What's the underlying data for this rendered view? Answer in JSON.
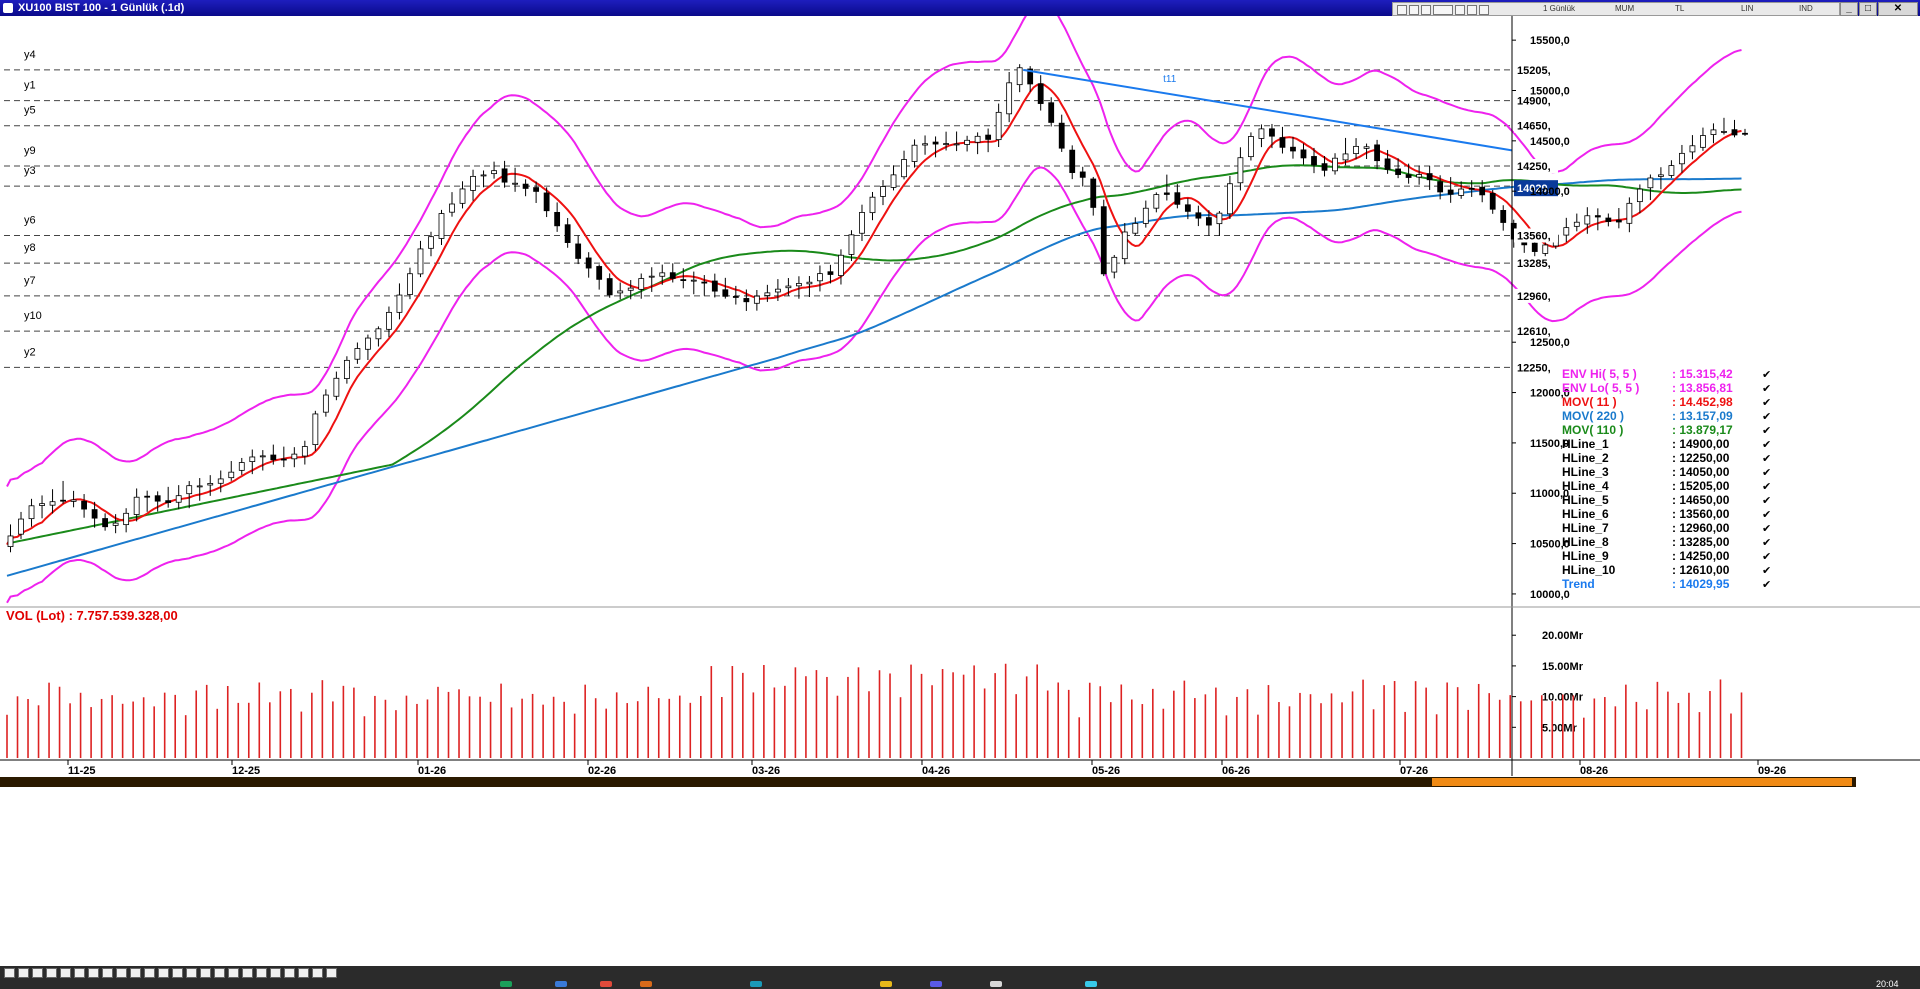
{
  "window": {
    "title": "XU100 BIST 100 - 1 Günlük (.1d)",
    "toolbar": [
      "1 Günlük",
      "MUM",
      "TL",
      "LIN",
      "IND"
    ],
    "time": "20:04"
  },
  "colors": {
    "env": "#ee22ee",
    "mov11": "#ee1111",
    "mov110": "#1a8a1a",
    "mov220": "#1a7acc",
    "trend": "#1a7aee",
    "volume": "#dd2222",
    "hline": "#444444"
  },
  "legend": [
    {
      "label": "ENV Hi( 5, 5 )",
      "value": ": 15.315,42",
      "color": "#ee22ee"
    },
    {
      "label": "ENV Lo( 5, 5 )",
      "value": ": 13.856,81",
      "color": "#ee22ee"
    },
    {
      "label": "MOV( 11 )",
      "value": ": 14.452,98",
      "color": "#ee1111"
    },
    {
      "label": "MOV( 220 )",
      "value": ": 13.157,09",
      "color": "#1a7acc"
    },
    {
      "label": "MOV( 110 )",
      "value": ": 13.879,17",
      "color": "#1a8a1a"
    },
    {
      "label": "HLine_1",
      "value": ": 14900,00",
      "color": "#000000"
    },
    {
      "label": "HLine_2",
      "value": ": 12250,00",
      "color": "#000000"
    },
    {
      "label": "HLine_3",
      "value": ": 14050,00",
      "color": "#000000"
    },
    {
      "label": "HLine_4",
      "value": ": 15205,00",
      "color": "#000000"
    },
    {
      "label": "HLine_5",
      "value": ": 14650,00",
      "color": "#000000"
    },
    {
      "label": "HLine_6",
      "value": ": 13560,00",
      "color": "#000000"
    },
    {
      "label": "HLine_7",
      "value": ": 12960,00",
      "color": "#000000"
    },
    {
      "label": "HLine_8",
      "value": ": 13285,00",
      "color": "#000000"
    },
    {
      "label": "HLine_9",
      "value": ": 14250,00",
      "color": "#000000"
    },
    {
      "label": "HLine_10",
      "value": ": 12610,00",
      "color": "#000000"
    },
    {
      "label": "Trend",
      "value": ": 14029,95",
      "color": "#1a7aee"
    }
  ],
  "volume_label": "VOL (Lot) : 7.757.539.328,00",
  "chart_data": {
    "type": "candlestick",
    "ylim": [
      9900,
      15720
    ],
    "y_ticks": [
      "15500,0",
      "15000,0",
      "14500,0",
      "14000,0",
      "12500,0",
      "12000,0",
      "11500,0",
      "11000,0",
      "10500,0",
      "10000,0"
    ],
    "x_ticks": [
      "11-25",
      "12-25",
      "01-26",
      "02-26",
      "03-26",
      "04-26",
      "05-26",
      "06-26",
      "07-26",
      "08-26",
      "09-26"
    ],
    "hlines": [
      {
        "name": "y4",
        "value": 15205,
        "tag": "15205,"
      },
      {
        "name": "y1",
        "value": 14900,
        "tag": "14900,"
      },
      {
        "name": "y5",
        "value": 14650,
        "tag": "14650,"
      },
      {
        "name": "y9",
        "value": 14250,
        "tag": "14250,"
      },
      {
        "name": "y3",
        "value": 14050,
        "tag": ""
      },
      {
        "name": "y6",
        "value": 13560,
        "tag": "13560,"
      },
      {
        "name": "y8",
        "value": 13285,
        "tag": "13285,"
      },
      {
        "name": "y7",
        "value": 12960,
        "tag": "12960,"
      },
      {
        "name": "y10",
        "value": 12610,
        "tag": "12610,"
      },
      {
        "name": "y2",
        "value": 12250,
        "tag": "12250,"
      }
    ],
    "trend_tag": "14029,",
    "trend_label": "t11",
    "trendline": {
      "start": [
        "05-26",
        15205
      ],
      "value_last": 14029.95
    },
    "volume_ticks": [
      "20.00Mr",
      "15.00Mr",
      "10.00Mr",
      "5.00Mr"
    ],
    "volume_ylim": [
      0,
      21.5
    ],
    "close_anchors": [
      [
        0,
        10520
      ],
      [
        8,
        10830
      ],
      [
        16,
        11000
      ],
      [
        24,
        10780
      ],
      [
        30,
        10650
      ],
      [
        38,
        10900
      ],
      [
        46,
        10950
      ],
      [
        56,
        11050
      ],
      [
        66,
        11250
      ],
      [
        76,
        11380
      ],
      [
        82,
        11330
      ],
      [
        86,
        11450
      ],
      [
        90,
        11900
      ],
      [
        98,
        12300
      ],
      [
        108,
        12700
      ],
      [
        118,
        13300
      ],
      [
        126,
        13850
      ],
      [
        134,
        14100
      ],
      [
        140,
        14250
      ],
      [
        146,
        14050
      ],
      [
        152,
        13950
      ],
      [
        158,
        13700
      ],
      [
        166,
        13200
      ],
      [
        174,
        13000
      ],
      [
        180,
        13050
      ],
      [
        188,
        13200
      ],
      [
        196,
        13100
      ],
      [
        204,
        13000
      ],
      [
        212,
        12900
      ],
      [
        220,
        13050
      ],
      [
        228,
        13050
      ],
      [
        236,
        13200
      ],
      [
        244,
        13700
      ],
      [
        252,
        14150
      ],
      [
        260,
        14400
      ],
      [
        268,
        14500
      ],
      [
        276,
        14450
      ],
      [
        282,
        14550
      ],
      [
        286,
        15050
      ],
      [
        290,
        15200
      ],
      [
        294,
        14950
      ],
      [
        300,
        14650
      ],
      [
        304,
        14250
      ],
      [
        310,
        14000
      ],
      [
        314,
        13200
      ],
      [
        320,
        13600
      ],
      [
        324,
        13700
      ],
      [
        330,
        14050
      ],
      [
        336,
        13850
      ],
      [
        342,
        13650
      ],
      [
        346,
        13700
      ],
      [
        352,
        14300
      ],
      [
        358,
        14600
      ],
      [
        364,
        14500
      ],
      [
        370,
        14350
      ],
      [
        376,
        14200
      ],
      [
        382,
        14400
      ],
      [
        388,
        14450
      ],
      [
        394,
        14250
      ],
      [
        400,
        14150
      ],
      [
        406,
        14100
      ],
      [
        412,
        14000
      ],
      [
        418,
        14050
      ],
      [
        424,
        13900
      ],
      [
        430,
        13600
      ],
      [
        436,
        13350
      ],
      [
        442,
        13550
      ],
      [
        448,
        13700
      ],
      [
        454,
        13700
      ],
      [
        460,
        13700
      ],
      [
        466,
        13950
      ],
      [
        472,
        14150
      ],
      [
        478,
        14350
      ],
      [
        484,
        14500
      ],
      [
        490,
        14650
      ],
      [
        494,
        14600
      ]
    ]
  }
}
